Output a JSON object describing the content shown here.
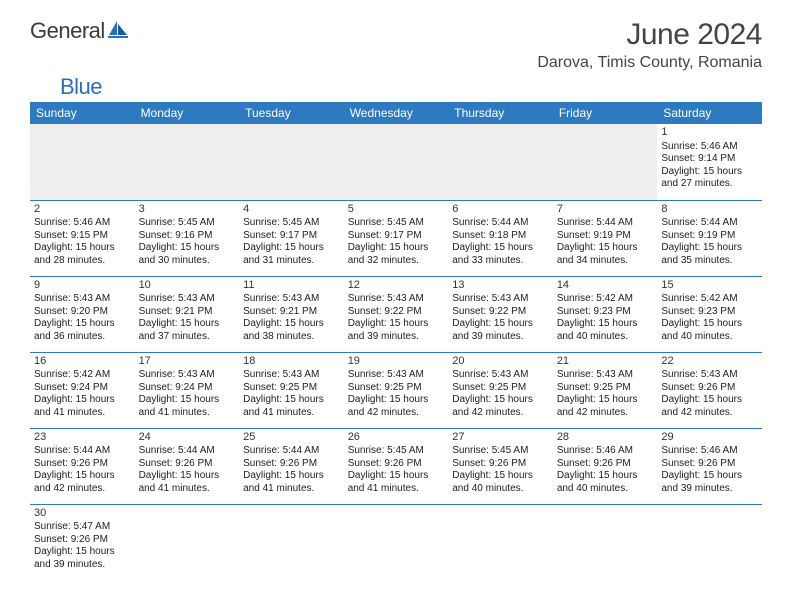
{
  "logo": {
    "part1": "General",
    "part2": "Blue"
  },
  "title": "June 2024",
  "location": "Darova, Timis County, Romania",
  "colors": {
    "header_bg": "#2e7ac0",
    "header_text": "#ffffff",
    "border": "#2e7ac0",
    "empty_bg": "#eeeeee",
    "logo_gray": "#3a3a3a",
    "logo_blue": "#2a70b8"
  },
  "fonts": {
    "title_size": 30,
    "location_size": 16,
    "header_size": 12,
    "cell_size": 10
  },
  "weekdays": [
    "Sunday",
    "Monday",
    "Tuesday",
    "Wednesday",
    "Thursday",
    "Friday",
    "Saturday"
  ],
  "weeks": [
    [
      null,
      null,
      null,
      null,
      null,
      null,
      {
        "n": "1",
        "sr": "Sunrise: 5:46 AM",
        "ss": "Sunset: 9:14 PM",
        "d1": "Daylight: 15 hours",
        "d2": "and 27 minutes."
      }
    ],
    [
      {
        "n": "2",
        "sr": "Sunrise: 5:46 AM",
        "ss": "Sunset: 9:15 PM",
        "d1": "Daylight: 15 hours",
        "d2": "and 28 minutes."
      },
      {
        "n": "3",
        "sr": "Sunrise: 5:45 AM",
        "ss": "Sunset: 9:16 PM",
        "d1": "Daylight: 15 hours",
        "d2": "and 30 minutes."
      },
      {
        "n": "4",
        "sr": "Sunrise: 5:45 AM",
        "ss": "Sunset: 9:17 PM",
        "d1": "Daylight: 15 hours",
        "d2": "and 31 minutes."
      },
      {
        "n": "5",
        "sr": "Sunrise: 5:45 AM",
        "ss": "Sunset: 9:17 PM",
        "d1": "Daylight: 15 hours",
        "d2": "and 32 minutes."
      },
      {
        "n": "6",
        "sr": "Sunrise: 5:44 AM",
        "ss": "Sunset: 9:18 PM",
        "d1": "Daylight: 15 hours",
        "d2": "and 33 minutes."
      },
      {
        "n": "7",
        "sr": "Sunrise: 5:44 AM",
        "ss": "Sunset: 9:19 PM",
        "d1": "Daylight: 15 hours",
        "d2": "and 34 minutes."
      },
      {
        "n": "8",
        "sr": "Sunrise: 5:44 AM",
        "ss": "Sunset: 9:19 PM",
        "d1": "Daylight: 15 hours",
        "d2": "and 35 minutes."
      }
    ],
    [
      {
        "n": "9",
        "sr": "Sunrise: 5:43 AM",
        "ss": "Sunset: 9:20 PM",
        "d1": "Daylight: 15 hours",
        "d2": "and 36 minutes."
      },
      {
        "n": "10",
        "sr": "Sunrise: 5:43 AM",
        "ss": "Sunset: 9:21 PM",
        "d1": "Daylight: 15 hours",
        "d2": "and 37 minutes."
      },
      {
        "n": "11",
        "sr": "Sunrise: 5:43 AM",
        "ss": "Sunset: 9:21 PM",
        "d1": "Daylight: 15 hours",
        "d2": "and 38 minutes."
      },
      {
        "n": "12",
        "sr": "Sunrise: 5:43 AM",
        "ss": "Sunset: 9:22 PM",
        "d1": "Daylight: 15 hours",
        "d2": "and 39 minutes."
      },
      {
        "n": "13",
        "sr": "Sunrise: 5:43 AM",
        "ss": "Sunset: 9:22 PM",
        "d1": "Daylight: 15 hours",
        "d2": "and 39 minutes."
      },
      {
        "n": "14",
        "sr": "Sunrise: 5:42 AM",
        "ss": "Sunset: 9:23 PM",
        "d1": "Daylight: 15 hours",
        "d2": "and 40 minutes."
      },
      {
        "n": "15",
        "sr": "Sunrise: 5:42 AM",
        "ss": "Sunset: 9:23 PM",
        "d1": "Daylight: 15 hours",
        "d2": "and 40 minutes."
      }
    ],
    [
      {
        "n": "16",
        "sr": "Sunrise: 5:42 AM",
        "ss": "Sunset: 9:24 PM",
        "d1": "Daylight: 15 hours",
        "d2": "and 41 minutes."
      },
      {
        "n": "17",
        "sr": "Sunrise: 5:43 AM",
        "ss": "Sunset: 9:24 PM",
        "d1": "Daylight: 15 hours",
        "d2": "and 41 minutes."
      },
      {
        "n": "18",
        "sr": "Sunrise: 5:43 AM",
        "ss": "Sunset: 9:25 PM",
        "d1": "Daylight: 15 hours",
        "d2": "and 41 minutes."
      },
      {
        "n": "19",
        "sr": "Sunrise: 5:43 AM",
        "ss": "Sunset: 9:25 PM",
        "d1": "Daylight: 15 hours",
        "d2": "and 42 minutes."
      },
      {
        "n": "20",
        "sr": "Sunrise: 5:43 AM",
        "ss": "Sunset: 9:25 PM",
        "d1": "Daylight: 15 hours",
        "d2": "and 42 minutes."
      },
      {
        "n": "21",
        "sr": "Sunrise: 5:43 AM",
        "ss": "Sunset: 9:25 PM",
        "d1": "Daylight: 15 hours",
        "d2": "and 42 minutes."
      },
      {
        "n": "22",
        "sr": "Sunrise: 5:43 AM",
        "ss": "Sunset: 9:26 PM",
        "d1": "Daylight: 15 hours",
        "d2": "and 42 minutes."
      }
    ],
    [
      {
        "n": "23",
        "sr": "Sunrise: 5:44 AM",
        "ss": "Sunset: 9:26 PM",
        "d1": "Daylight: 15 hours",
        "d2": "and 42 minutes."
      },
      {
        "n": "24",
        "sr": "Sunrise: 5:44 AM",
        "ss": "Sunset: 9:26 PM",
        "d1": "Daylight: 15 hours",
        "d2": "and 41 minutes."
      },
      {
        "n": "25",
        "sr": "Sunrise: 5:44 AM",
        "ss": "Sunset: 9:26 PM",
        "d1": "Daylight: 15 hours",
        "d2": "and 41 minutes."
      },
      {
        "n": "26",
        "sr": "Sunrise: 5:45 AM",
        "ss": "Sunset: 9:26 PM",
        "d1": "Daylight: 15 hours",
        "d2": "and 41 minutes."
      },
      {
        "n": "27",
        "sr": "Sunrise: 5:45 AM",
        "ss": "Sunset: 9:26 PM",
        "d1": "Daylight: 15 hours",
        "d2": "and 40 minutes."
      },
      {
        "n": "28",
        "sr": "Sunrise: 5:46 AM",
        "ss": "Sunset: 9:26 PM",
        "d1": "Daylight: 15 hours",
        "d2": "and 40 minutes."
      },
      {
        "n": "29",
        "sr": "Sunrise: 5:46 AM",
        "ss": "Sunset: 9:26 PM",
        "d1": "Daylight: 15 hours",
        "d2": "and 39 minutes."
      }
    ],
    [
      {
        "n": "30",
        "sr": "Sunrise: 5:47 AM",
        "ss": "Sunset: 9:26 PM",
        "d1": "Daylight: 15 hours",
        "d2": "and 39 minutes."
      },
      null,
      null,
      null,
      null,
      null,
      null
    ]
  ]
}
